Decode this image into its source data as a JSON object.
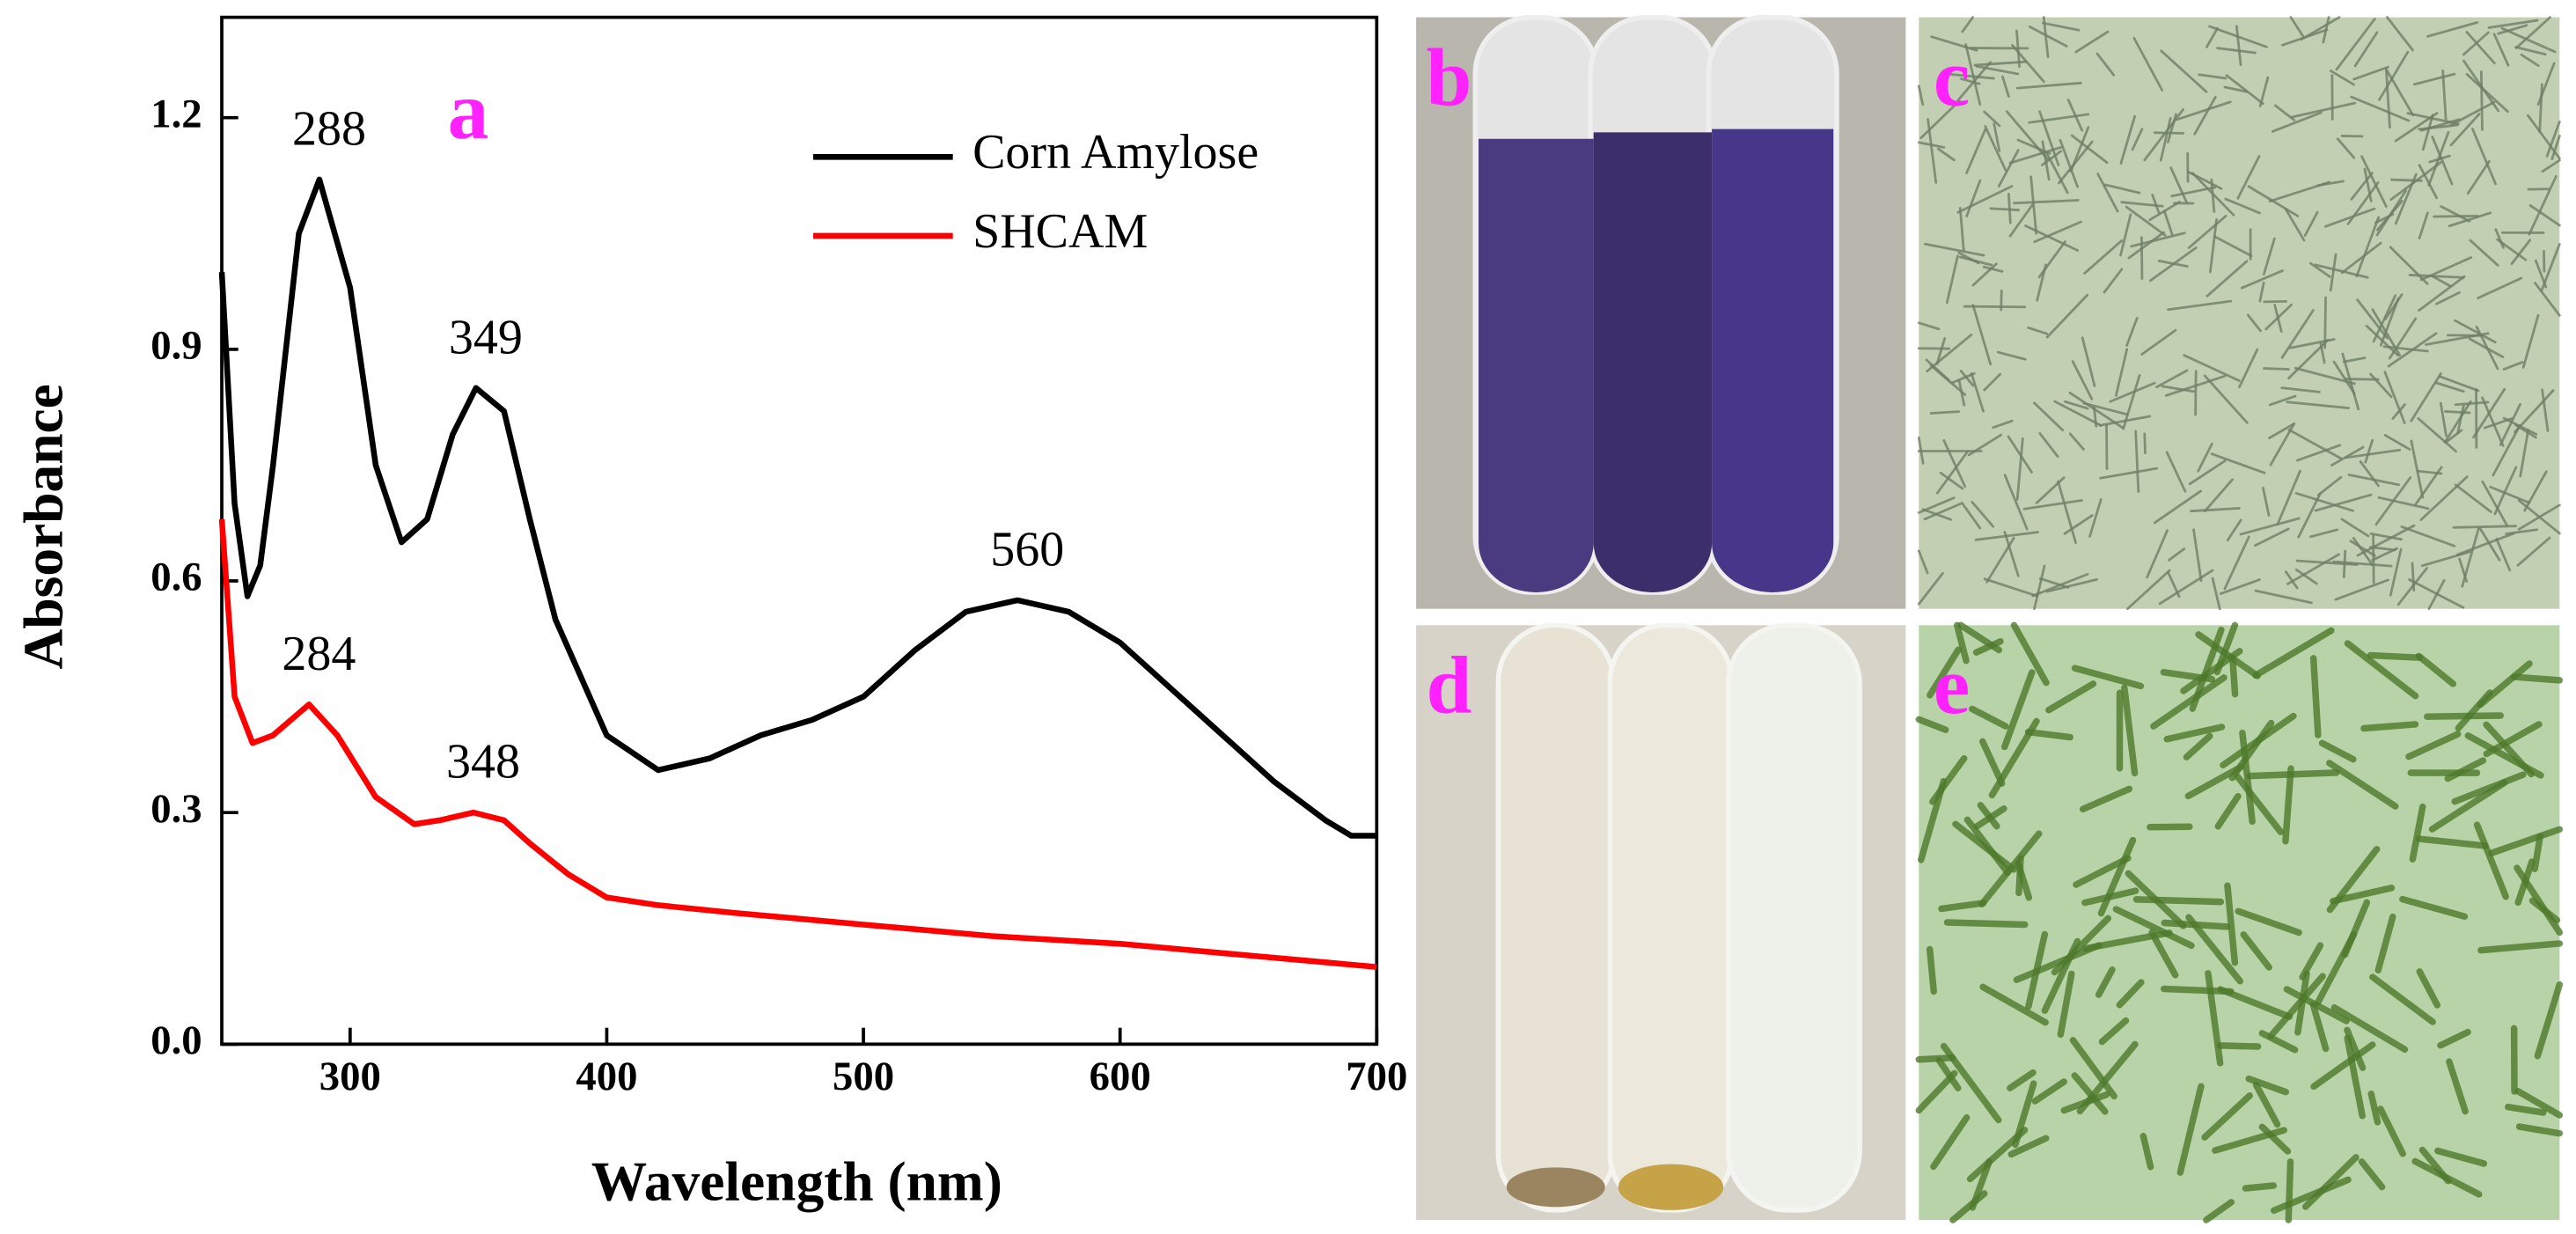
{
  "chart_data": {
    "type": "line",
    "xlabel": "Wavelength (nm)",
    "ylabel": "Absorbance",
    "xlim": [
      250,
      700
    ],
    "ylim": [
      0,
      1.33
    ],
    "xticks": [
      300,
      400,
      500,
      600,
      700
    ],
    "yticks": [
      {
        "value": 0,
        "label": "0.0"
      },
      0.3,
      0.6,
      0.9,
      1.2
    ],
    "legend": "upper right",
    "series": [
      {
        "name": "Corn Amylose",
        "color": "#000000",
        "x": [
          250,
          255,
          260,
          265,
          270,
          280,
          288,
          300,
          310,
          320,
          330,
          340,
          349,
          360,
          370,
          380,
          400,
          420,
          440,
          460,
          480,
          500,
          520,
          540,
          560,
          580,
          600,
          620,
          640,
          660,
          680,
          690,
          700
        ],
        "values": [
          1.0,
          0.7,
          0.58,
          0.62,
          0.75,
          1.05,
          1.12,
          0.98,
          0.75,
          0.65,
          0.68,
          0.79,
          0.85,
          0.82,
          0.68,
          0.55,
          0.4,
          0.355,
          0.37,
          0.4,
          0.42,
          0.45,
          0.51,
          0.56,
          0.575,
          0.56,
          0.52,
          0.46,
          0.4,
          0.34,
          0.29,
          0.27,
          0.27
        ],
        "peak_labels": [
          "288",
          "349",
          "560"
        ]
      },
      {
        "name": "SHCAM",
        "color": "#ff0000",
        "x": [
          250,
          255,
          262,
          270,
          284,
          295,
          310,
          325,
          335,
          348,
          360,
          370,
          385,
          400,
          420,
          450,
          500,
          550,
          600,
          650,
          700
        ],
        "values": [
          0.68,
          0.45,
          0.39,
          0.4,
          0.44,
          0.4,
          0.32,
          0.285,
          0.29,
          0.3,
          0.29,
          0.26,
          0.22,
          0.19,
          0.18,
          0.17,
          0.155,
          0.14,
          0.13,
          0.115,
          0.1
        ],
        "peak_labels": [
          "284",
          "348"
        ]
      }
    ]
  },
  "panel_labels": [
    "a",
    "b",
    "c",
    "d",
    "e"
  ]
}
